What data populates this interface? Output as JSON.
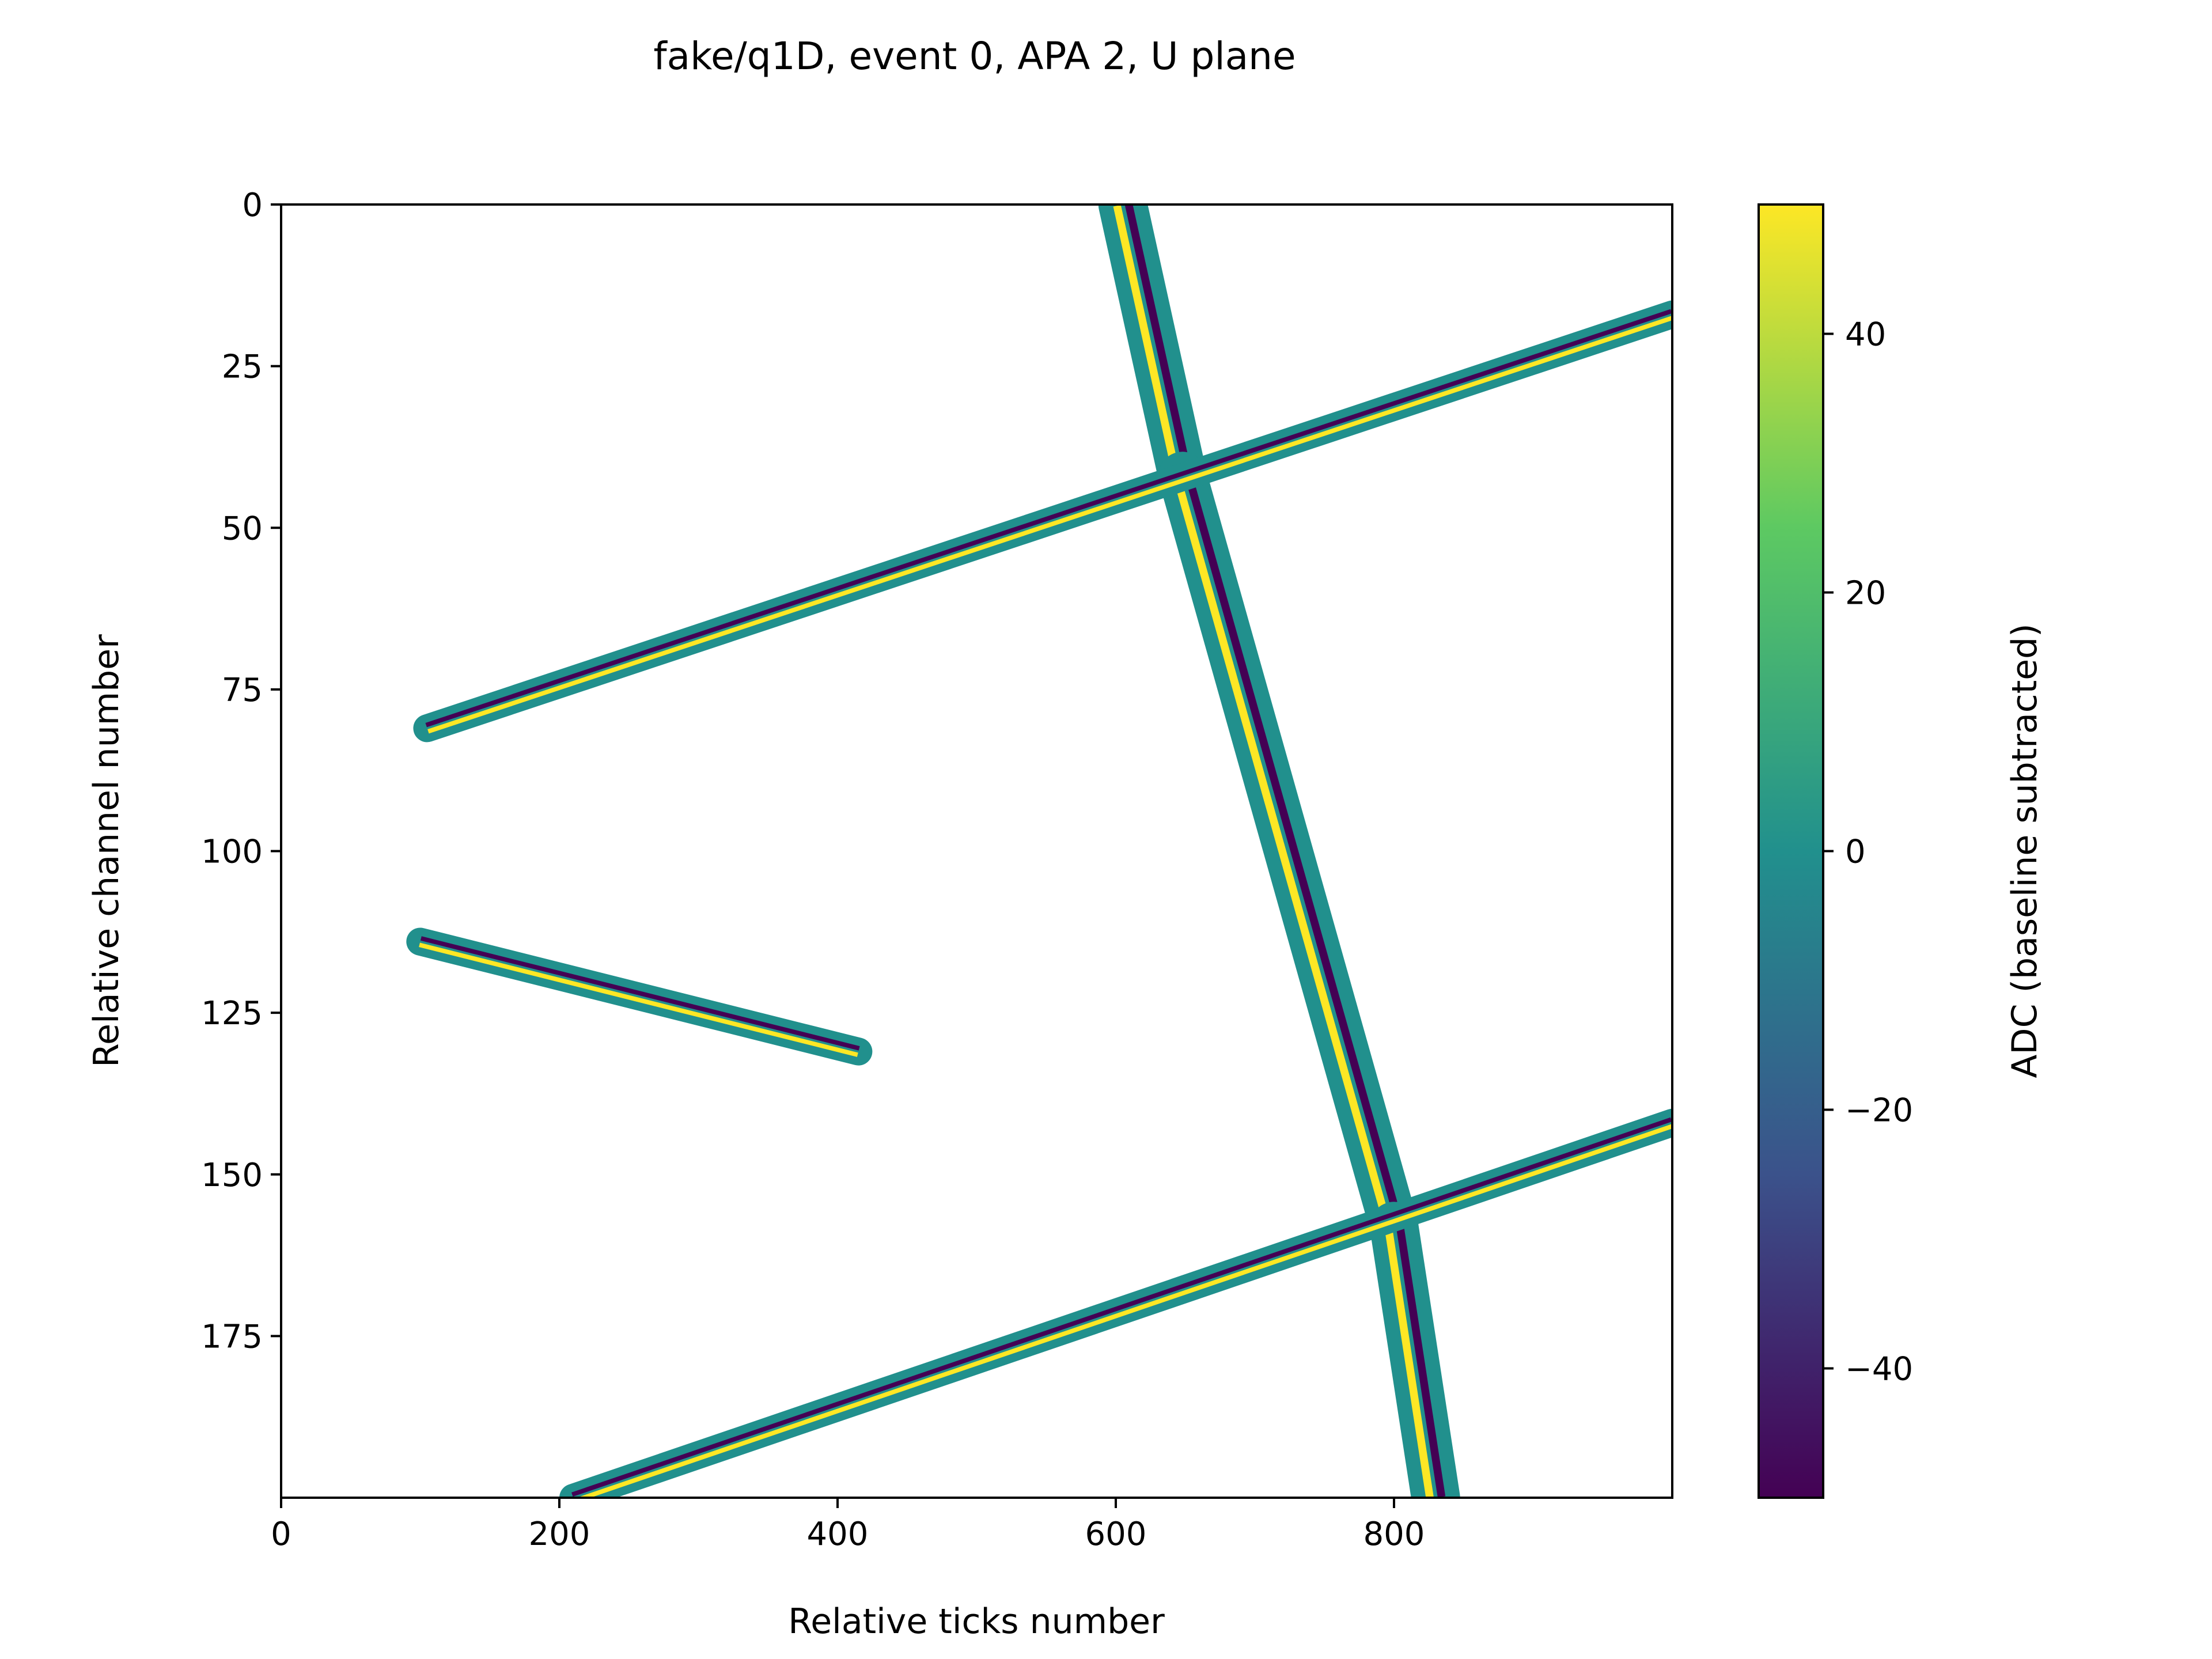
{
  "chart_data": {
    "type": "heatmap",
    "title": "fake/q1D, event 0, APA 2, U plane",
    "xlabel": "Relative ticks number",
    "ylabel": "Relative channel number",
    "colorbar_label": "ADC (baseline subtracted)",
    "xlim": [
      0,
      1000
    ],
    "ylim": [
      200,
      0
    ],
    "xticks": [
      0,
      200,
      400,
      600,
      800
    ],
    "yticks": [
      0,
      25,
      50,
      75,
      100,
      125,
      150,
      175
    ],
    "colorbar_range": [
      -50,
      50
    ],
    "colorbar_ticks": [
      40,
      20,
      0,
      -20,
      -40
    ],
    "colormap": "viridis",
    "colormap_stops": [
      "#440154",
      "#3b528b",
      "#21908d",
      "#5dc962",
      "#fde725"
    ],
    "background": "#ffffff",
    "tracks": [
      {
        "name": "steep track upper",
        "start": {
          "tick": 605,
          "channel": 0
        },
        "end": {
          "tick": 648,
          "channel": 42
        },
        "width_ticks": 35
      },
      {
        "name": "steep track lower",
        "start": {
          "tick": 648,
          "channel": 42
        },
        "end": {
          "tick": 800,
          "channel": 158
        },
        "width_ticks": 35
      },
      {
        "name": "steep track bottom",
        "start": {
          "tick": 800,
          "channel": 158
        },
        "end": {
          "tick": 830,
          "channel": 200
        },
        "width_ticks": 35
      },
      {
        "name": "upper diagonal",
        "start": {
          "tick": 105,
          "channel": 81
        },
        "end": {
          "tick": 1000,
          "channel": 17
        },
        "width_ticks": 20
      },
      {
        "name": "short segment",
        "start": {
          "tick": 100,
          "channel": 114
        },
        "end": {
          "tick": 415,
          "channel": 131
        },
        "width_ticks": 20
      },
      {
        "name": "lower diagonal",
        "start": {
          "tick": 210,
          "channel": 200
        },
        "end": {
          "tick": 1000,
          "channel": 142
        },
        "width_ticks": 20
      }
    ]
  }
}
